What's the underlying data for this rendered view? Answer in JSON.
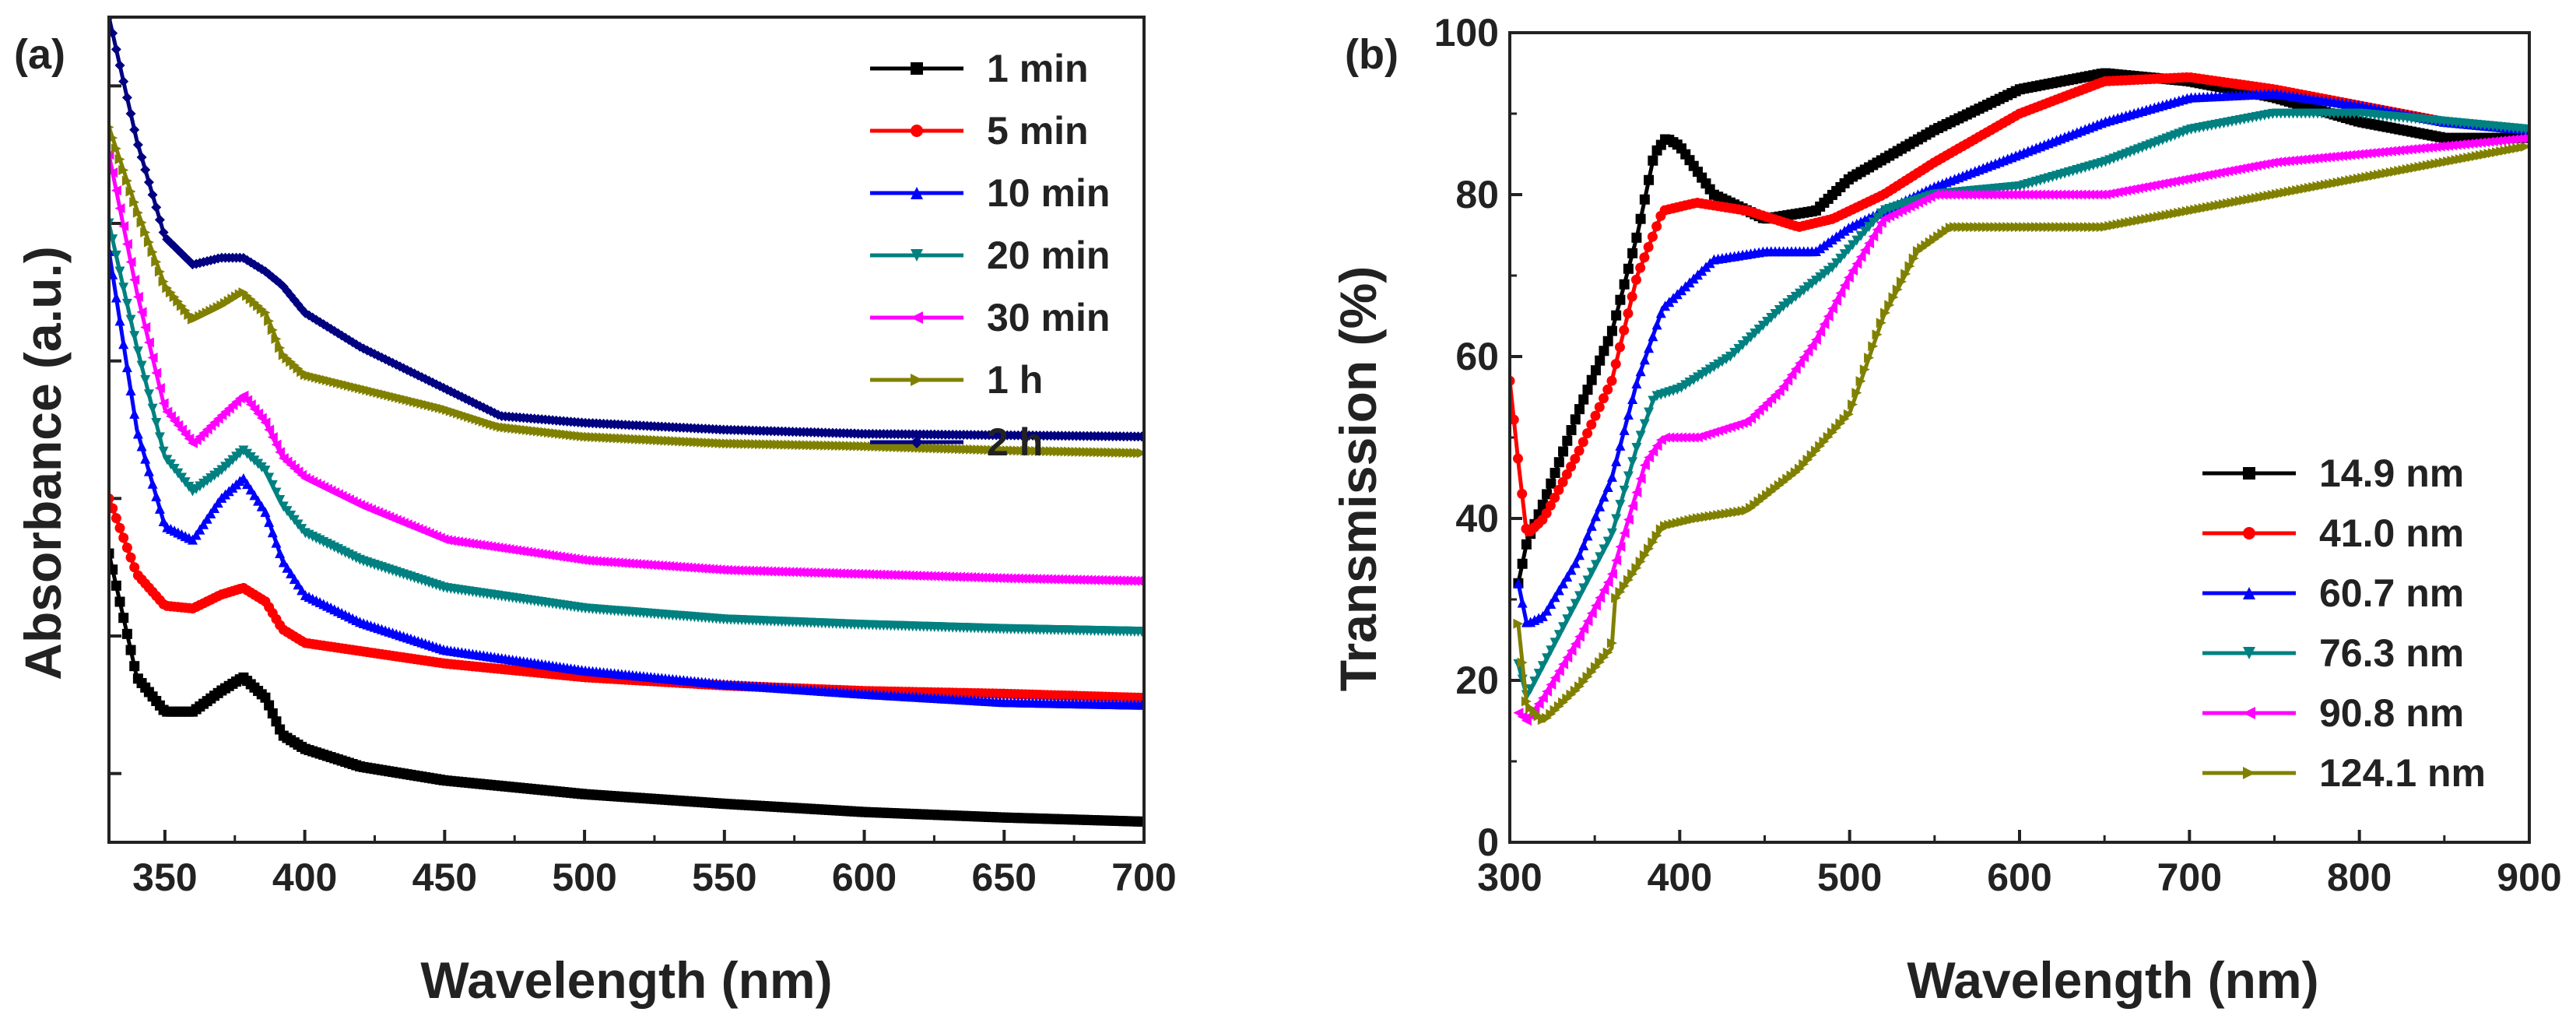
{
  "chart_data": [
    {
      "panel_label": "(a)",
      "type": "line",
      "xlabel": "Wavelength (nm)",
      "ylabel": "Absorbance (a.u.)",
      "xlim": [
        330,
        700
      ],
      "ylim": [
        0,
        6.0
      ],
      "xticks": [
        350,
        400,
        450,
        500,
        550,
        600,
        650,
        700
      ],
      "xtick_labels": [
        "350",
        "400",
        "450",
        "500",
        "550",
        "600",
        "650",
        "700"
      ],
      "yticks": [
        0.5,
        1.5,
        2.5,
        3.5,
        4.5,
        5.5
      ],
      "ytick_labels": [],
      "legend_position": "top-right",
      "series": [
        {
          "name": "1 min",
          "color": "#000000",
          "marker": "square",
          "x": [
            330,
            340,
            350,
            360,
            370,
            378,
            386,
            392,
            400,
            420,
            450,
            500,
            550,
            600,
            650,
            700
          ],
          "y": [
            2.1,
            1.2,
            0.95,
            0.95,
            1.1,
            1.2,
            1.05,
            0.78,
            0.68,
            0.55,
            0.45,
            0.35,
            0.28,
            0.22,
            0.18,
            0.15
          ]
        },
        {
          "name": "5 min",
          "color": "#ff0000",
          "marker": "circle",
          "x": [
            330,
            340,
            350,
            360,
            370,
            378,
            386,
            392,
            400,
            450,
            500,
            550,
            600,
            650,
            700
          ],
          "y": [
            2.5,
            1.95,
            1.72,
            1.7,
            1.8,
            1.85,
            1.75,
            1.55,
            1.45,
            1.3,
            1.2,
            1.14,
            1.1,
            1.08,
            1.05
          ]
        },
        {
          "name": "10 min",
          "color": "#0000ff",
          "marker": "triangle-up",
          "x": [
            330,
            340,
            350,
            360,
            370,
            378,
            386,
            392,
            400,
            420,
            450,
            500,
            550,
            600,
            650,
            700
          ],
          "y": [
            4.3,
            3.0,
            2.3,
            2.2,
            2.5,
            2.65,
            2.4,
            2.05,
            1.8,
            1.6,
            1.4,
            1.25,
            1.15,
            1.08,
            1.02,
            1.0
          ]
        },
        {
          "name": "20 min",
          "color": "#008080",
          "marker": "triangle-down",
          "x": [
            330,
            340,
            350,
            360,
            370,
            378,
            386,
            392,
            400,
            420,
            450,
            500,
            550,
            600,
            650,
            700
          ],
          "y": [
            4.5,
            3.6,
            2.8,
            2.55,
            2.7,
            2.85,
            2.7,
            2.45,
            2.25,
            2.05,
            1.85,
            1.7,
            1.62,
            1.58,
            1.55,
            1.53
          ]
        },
        {
          "name": "30 min",
          "color": "#ff00ff",
          "marker": "triangle-left",
          "x": [
            330,
            340,
            350,
            360,
            370,
            378,
            386,
            392,
            400,
            420,
            450,
            500,
            550,
            600,
            650,
            700
          ],
          "y": [
            5.0,
            4.0,
            3.15,
            2.9,
            3.1,
            3.25,
            3.05,
            2.8,
            2.65,
            2.45,
            2.2,
            2.05,
            1.98,
            1.95,
            1.92,
            1.9
          ]
        },
        {
          "name": "1 h",
          "color": "#808000",
          "marker": "triangle-right",
          "x": [
            330,
            340,
            350,
            360,
            370,
            378,
            386,
            392,
            400,
            420,
            450,
            470,
            500,
            550,
            600,
            650,
            700
          ],
          "y": [
            5.2,
            4.6,
            4.05,
            3.8,
            3.9,
            4.0,
            3.85,
            3.55,
            3.4,
            3.3,
            3.15,
            3.02,
            2.95,
            2.9,
            2.88,
            2.85,
            2.83
          ]
        },
        {
          "name": "2 h",
          "color": "#000080",
          "marker": "diamond",
          "x": [
            330,
            340,
            350,
            360,
            370,
            378,
            386,
            392,
            400,
            420,
            450,
            470,
            500,
            550,
            600,
            650,
            700
          ],
          "y": [
            6.0,
            5.1,
            4.4,
            4.2,
            4.25,
            4.25,
            4.15,
            4.05,
            3.85,
            3.6,
            3.3,
            3.1,
            3.05,
            3.0,
            2.97,
            2.96,
            2.95
          ]
        }
      ]
    },
    {
      "panel_label": "(b)",
      "type": "line",
      "xlabel": "Wavelength (nm)",
      "ylabel": "Transmission (%)",
      "xlim": [
        300,
        900
      ],
      "ylim": [
        0,
        100
      ],
      "xticks": [
        300,
        400,
        500,
        600,
        700,
        800,
        900
      ],
      "xtick_labels": [
        "300",
        "400",
        "500",
        "600",
        "700",
        "800",
        "900"
      ],
      "yticks": [
        0,
        20,
        40,
        60,
        80,
        100
      ],
      "ytick_labels": [
        "0",
        "20",
        "40",
        "60",
        "80",
        "100"
      ],
      "legend_position": "bottom-right",
      "series": [
        {
          "name": "14.9 nm",
          "color": "#000000",
          "marker": "square",
          "x": [
            305,
            310,
            320,
            340,
            360,
            375,
            385,
            392,
            400,
            420,
            450,
            480,
            500,
            550,
            600,
            650,
            700,
            750,
            800,
            850,
            900
          ],
          "y": [
            32,
            37,
            42,
            53,
            63,
            75,
            85,
            87,
            86,
            80,
            77,
            78,
            82,
            88,
            93,
            95,
            94,
            92,
            89,
            87,
            87
          ]
        },
        {
          "name": "41.0 nm",
          "color": "#ff0000",
          "marker": "circle",
          "x": [
            300,
            305,
            310,
            320,
            340,
            360,
            375,
            390,
            410,
            440,
            470,
            490,
            520,
            550,
            600,
            650,
            700,
            750,
            800,
            850,
            900
          ],
          "y": [
            57,
            47,
            38,
            40,
            48,
            57,
            70,
            78,
            79,
            78,
            76,
            77,
            80,
            84,
            90,
            94,
            94.5,
            93,
            91,
            89,
            88
          ]
        },
        {
          "name": "60.7 nm",
          "color": "#0000ff",
          "marker": "triangle-up",
          "x": [
            305,
            310,
            320,
            340,
            360,
            375,
            390,
            420,
            450,
            480,
            500,
            550,
            600,
            650,
            700,
            750,
            800,
            850,
            900
          ],
          "y": [
            32,
            27,
            28,
            35,
            45,
            57,
            66,
            72,
            73,
            73,
            76,
            81,
            85,
            89,
            92,
            92.5,
            91,
            89,
            88
          ]
        },
        {
          "name": "76.3 nm",
          "color": "#008080",
          "marker": "triangle-down",
          "x": [
            305,
            310,
            320,
            340,
            360,
            375,
            385,
            400,
            430,
            460,
            490,
            520,
            550,
            600,
            650,
            700,
            750,
            800,
            850,
            900
          ],
          "y": [
            22,
            18,
            22,
            30,
            38,
            49,
            55,
            56,
            60,
            66,
            71,
            78,
            80,
            81,
            84,
            88,
            90,
            90,
            89,
            88
          ]
        },
        {
          "name": "90.8 nm",
          "color": "#ff00ff",
          "marker": "triangle-left",
          "x": [
            305,
            310,
            320,
            340,
            360,
            370,
            380,
            390,
            410,
            440,
            460,
            480,
            500,
            520,
            550,
            600,
            650,
            700,
            750,
            800,
            850,
            900
          ],
          "y": [
            16,
            15,
            18,
            25,
            33,
            40,
            47,
            50,
            50,
            52,
            56,
            62,
            70,
            77,
            80,
            80,
            80,
            82,
            84,
            85,
            86,
            87
          ]
        },
        {
          "name": "124.1 nm",
          "color": "#808000",
          "marker": "triangle-right",
          "x": [
            305,
            310,
            320,
            340,
            360,
            362,
            375,
            390,
            410,
            440,
            470,
            500,
            520,
            540,
            560,
            600,
            650,
            700,
            750,
            800,
            850,
            900
          ],
          "y": [
            27,
            17,
            15,
            19,
            24,
            30,
            34,
            39,
            40,
            41,
            46,
            53,
            65,
            73,
            76,
            76,
            76,
            78,
            80,
            82,
            84,
            86
          ]
        }
      ]
    }
  ]
}
